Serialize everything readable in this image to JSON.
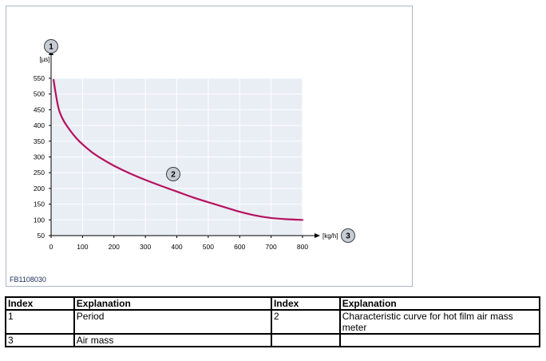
{
  "figure_id": "FB1108030",
  "colors": {
    "curve": "#b5115f",
    "plot_bg": "#e9edf4",
    "grid": "#ffffff",
    "callout_fill": "#c7ccd4",
    "frame": "#a9b7c6"
  },
  "callouts": {
    "y_axis": "1",
    "curve": "2",
    "x_axis": "3"
  },
  "chart_data": {
    "type": "line",
    "xlabel": "[kg/h]",
    "ylabel": "[µs]",
    "xlim": [
      0,
      800
    ],
    "ylim": [
      50,
      550
    ],
    "x_ticks": [
      "0",
      "100",
      "200",
      "300",
      "400",
      "500",
      "600",
      "700",
      "800"
    ],
    "y_ticks": [
      "550",
      "500",
      "450",
      "400",
      "350",
      "300",
      "250",
      "200",
      "150",
      "100",
      "50"
    ],
    "grid": true,
    "series": [
      {
        "x": [
          8,
          15,
          25,
          40,
          60,
          80,
          100,
          130,
          160,
          200,
          250,
          300,
          350,
          400,
          450,
          500,
          550,
          600,
          650,
          700,
          750,
          800
        ],
        "y": [
          545,
          500,
          450,
          415,
          385,
          360,
          340,
          315,
          295,
          272,
          248,
          227,
          208,
          190,
          172,
          156,
          141,
          126,
          114,
          106,
          102,
          100
        ]
      }
    ]
  },
  "table": {
    "headers": [
      "Index",
      "Explanation",
      "Index",
      "Explanation"
    ],
    "rows": [
      [
        "1",
        "Period",
        "2",
        "Characteristic curve for hot film air mass meter"
      ],
      [
        "3",
        "Air mass",
        "",
        ""
      ]
    ]
  }
}
